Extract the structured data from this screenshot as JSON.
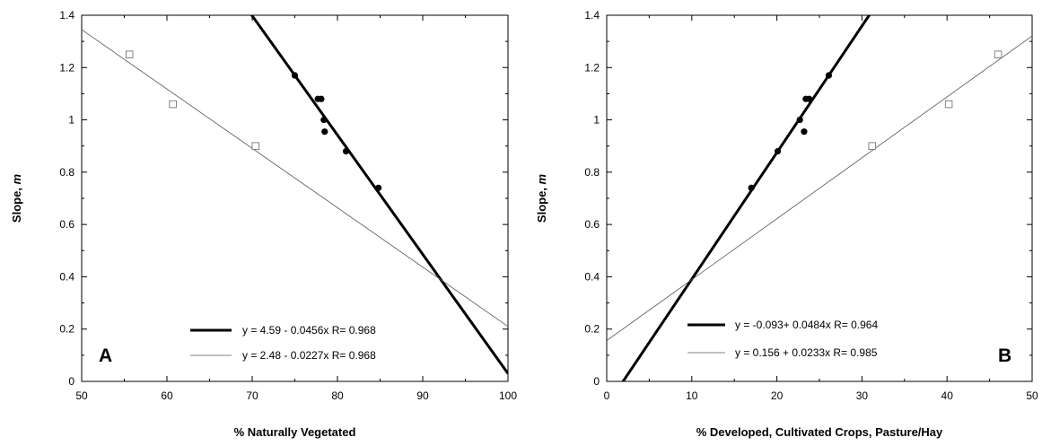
{
  "chart_data": [
    {
      "type": "scatter",
      "panel_label": "A",
      "xlabel": "% Naturally Vegetated",
      "ylabel": "Slope, ",
      "ylabel_italic": "m",
      "xlim": [
        50,
        100
      ],
      "ylim": [
        0,
        1.4
      ],
      "x_ticks": [
        "50",
        "60",
        "70",
        "80",
        "90",
        "100"
      ],
      "y_ticks": [
        "0",
        "0.2",
        "0.4",
        "0.6",
        "0.8",
        "1",
        "1.2",
        "1.4"
      ],
      "grid": false,
      "series": [
        {
          "marker": "filled-circle",
          "points": [
            [
              75.0,
              1.17
            ],
            [
              77.7,
              1.08
            ],
            [
              78.1,
              1.08
            ],
            [
              78.4,
              1.0
            ],
            [
              78.5,
              0.955
            ],
            [
              81.0,
              0.88
            ],
            [
              84.8,
              0.74
            ]
          ]
        },
        {
          "marker": "open-square",
          "points": [
            [
              55.6,
              1.25
            ],
            [
              60.7,
              1.06
            ],
            [
              70.4,
              0.9
            ]
          ]
        }
      ],
      "fits": [
        {
          "label": "y = 4.59 - 0.0456x   R= 0.968",
          "intercept": 4.59,
          "slope": -0.0456,
          "stroke": "thick"
        },
        {
          "label": "y = 2.48 - 0.0227x   R= 0.968",
          "intercept": 2.48,
          "slope": -0.0227,
          "stroke": "thin"
        }
      ],
      "legend_position": "bottom-right"
    },
    {
      "type": "scatter",
      "panel_label": "B",
      "xlabel": "% Developed, Cultivated Crops, Pasture/Hay",
      "ylabel": "Slope, ",
      "ylabel_italic": "m",
      "xlim": [
        0,
        50
      ],
      "ylim": [
        0,
        1.4
      ],
      "x_ticks": [
        "0",
        "10",
        "20",
        "30",
        "40",
        "50"
      ],
      "y_ticks": [
        "0",
        "0.2",
        "0.4",
        "0.6",
        "0.8",
        "1",
        "1.2",
        "1.4"
      ],
      "grid": false,
      "series": [
        {
          "marker": "filled-circle",
          "points": [
            [
              17.0,
              0.74
            ],
            [
              20.1,
              0.88
            ],
            [
              22.7,
              1.0
            ],
            [
              23.2,
              0.955
            ],
            [
              23.4,
              1.08
            ],
            [
              23.8,
              1.08
            ],
            [
              26.1,
              1.17
            ]
          ]
        },
        {
          "marker": "open-square",
          "points": [
            [
              31.2,
              0.9
            ],
            [
              40.2,
              1.06
            ],
            [
              46.0,
              1.25
            ]
          ]
        }
      ],
      "fits": [
        {
          "label": "y = -0.093+ 0.0484x   R= 0.964",
          "intercept": -0.093,
          "slope": 0.0484,
          "stroke": "thick"
        },
        {
          "label": "y = 0.156 + 0.0233x   R= 0.985",
          "intercept": 0.156,
          "slope": 0.0233,
          "stroke": "thin"
        }
      ],
      "legend_position": "bottom-left"
    }
  ]
}
